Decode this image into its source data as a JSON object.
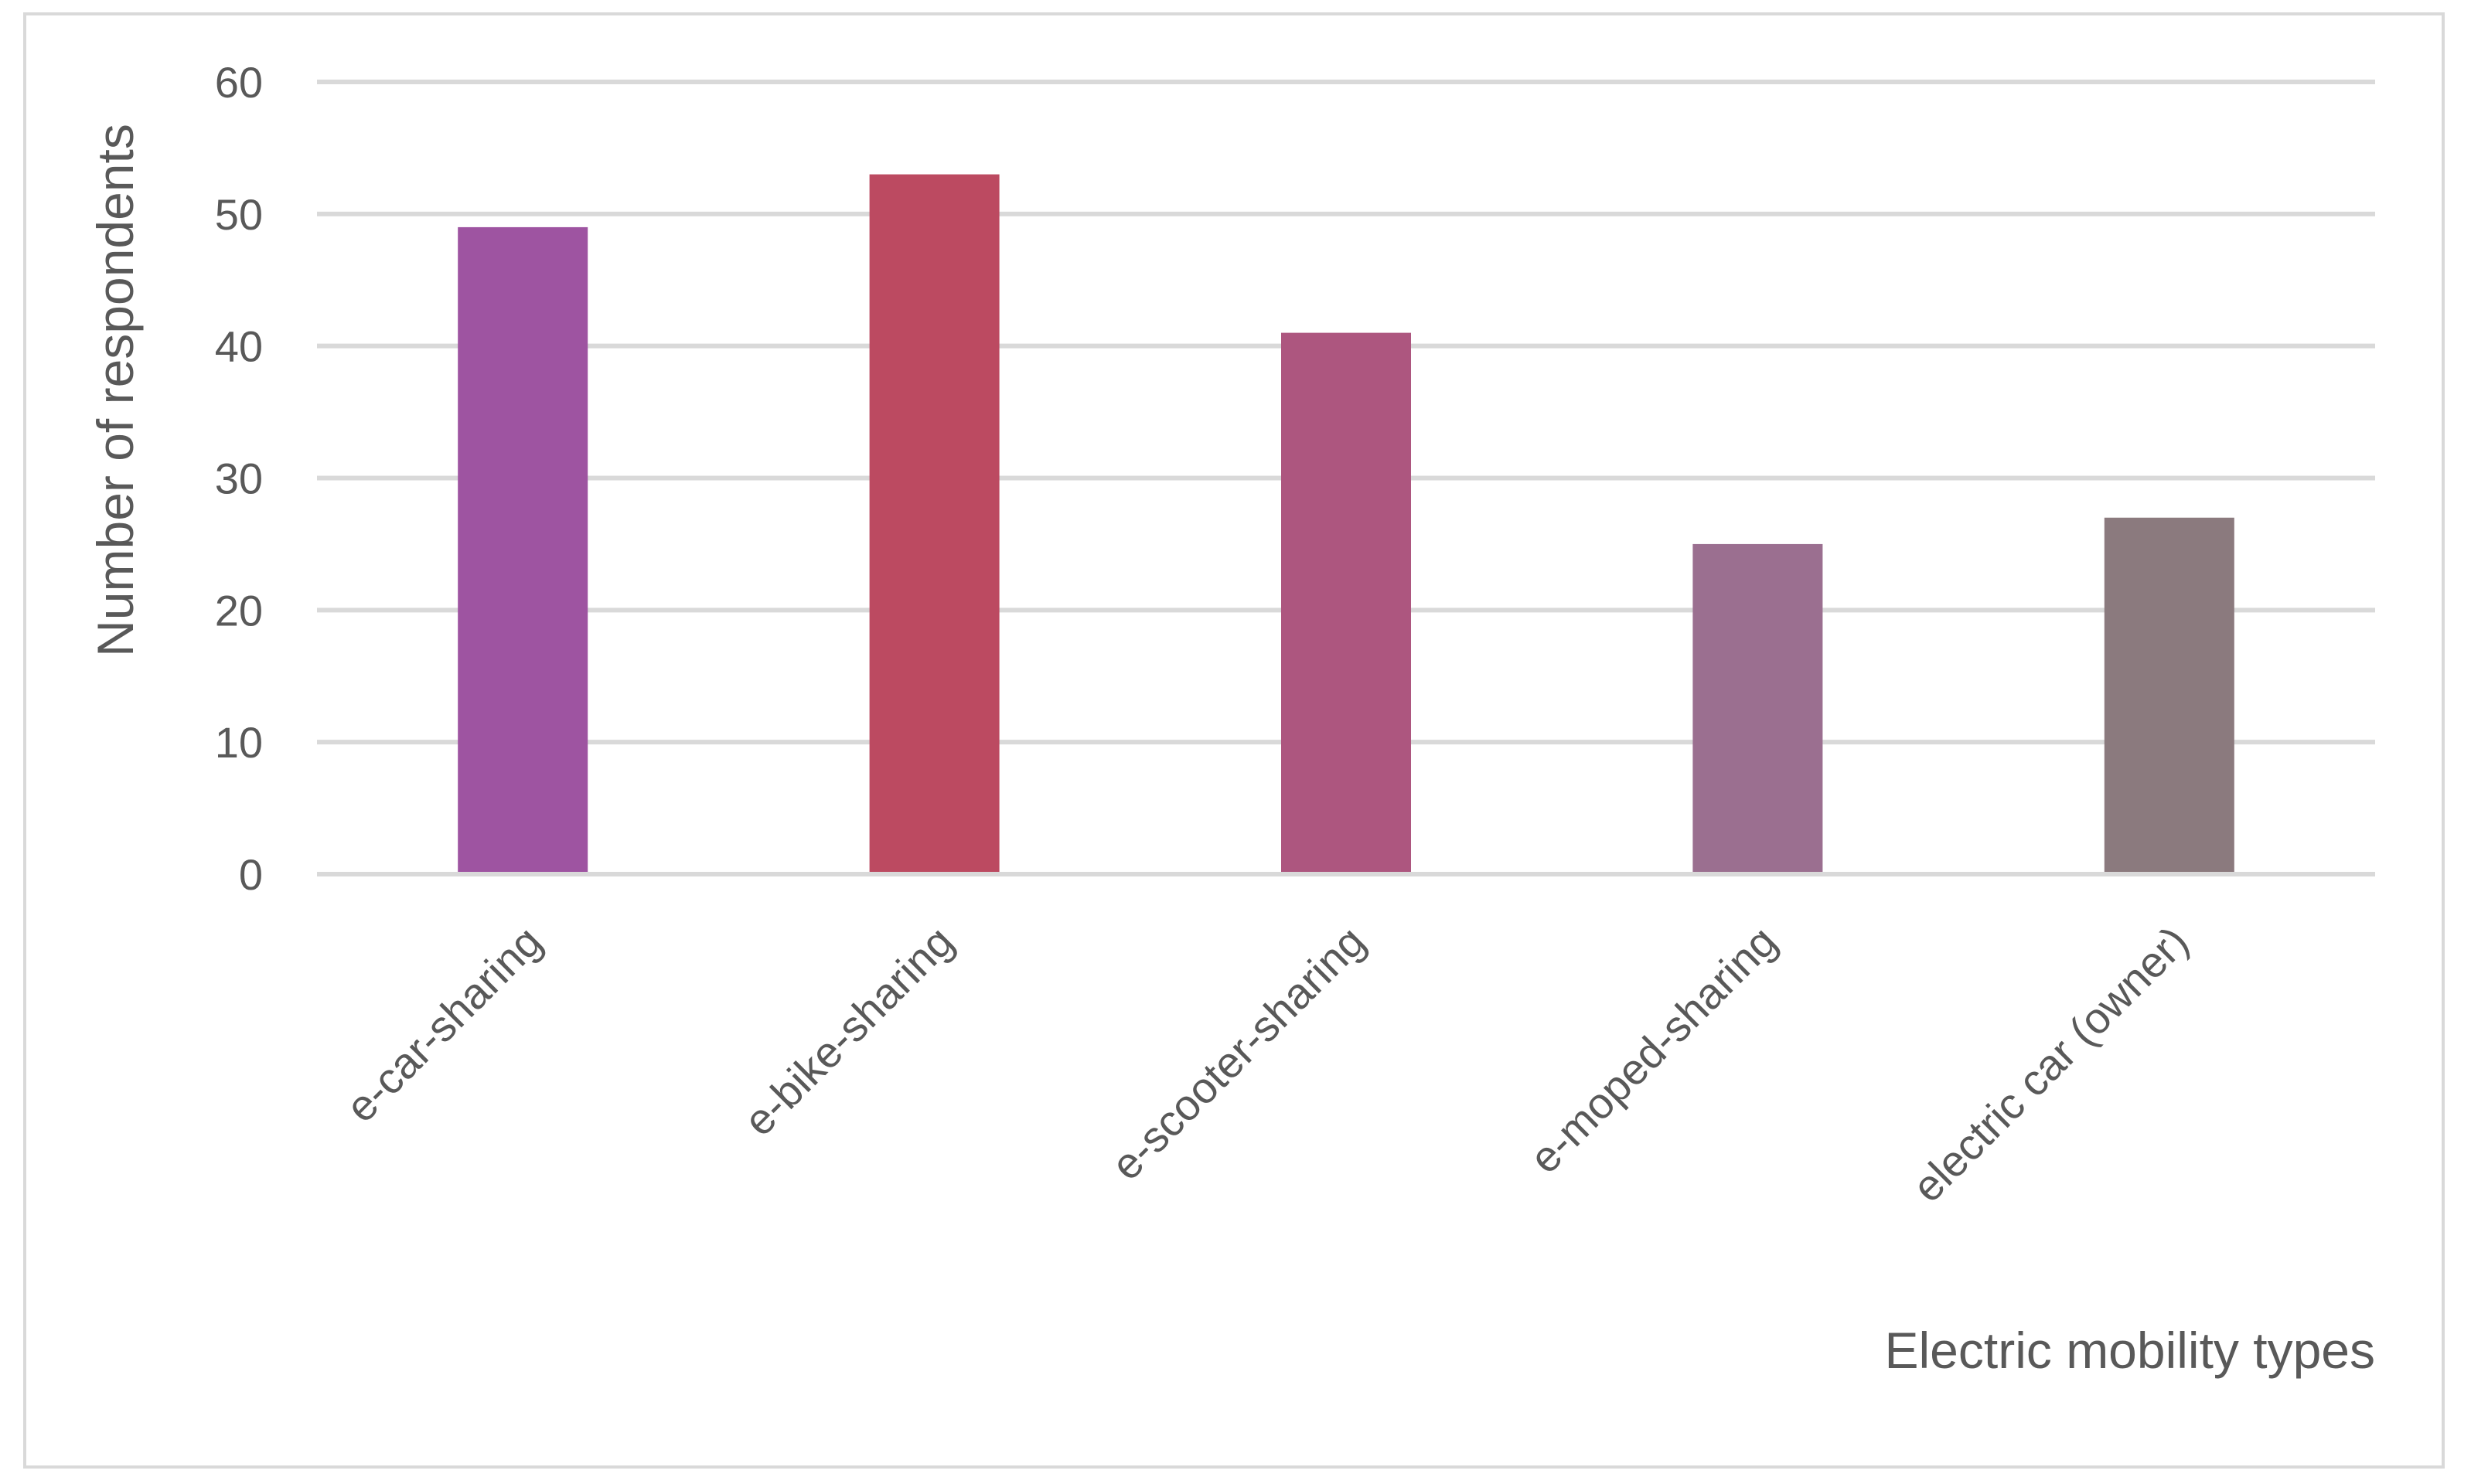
{
  "chart_data": {
    "type": "bar",
    "title": "",
    "xlabel": "Electric mobility types",
    "ylabel": "Number of respondents",
    "categories": [
      "e-car-sharing",
      "e-bike-sharing",
      "e-scooter-sharing",
      "e-moped-sharing",
      "electric car (owner)"
    ],
    "values": [
      49,
      53,
      41,
      25,
      27
    ],
    "colors": [
      "#9e54a1",
      "#bc4a61",
      "#ad567f",
      "#9b6f90",
      "#8b7a7e"
    ],
    "ylim": [
      0,
      60
    ],
    "yticks": [
      0,
      10,
      20,
      30,
      40,
      50,
      60
    ],
    "grid": true,
    "legend": "none"
  }
}
